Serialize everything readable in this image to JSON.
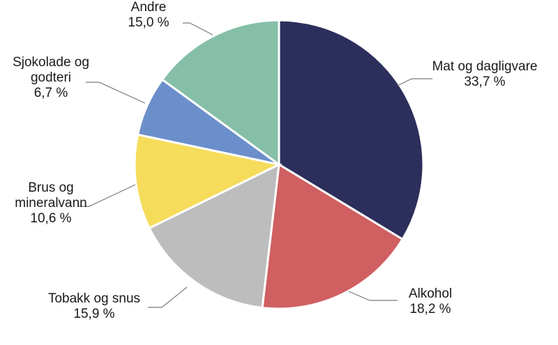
{
  "chart_data": {
    "type": "pie",
    "title": "",
    "unit": "%",
    "slices": [
      {
        "name": "Mat og dagligvare",
        "label_lines": [
          "Mat og dagligvare"
        ],
        "value_label": "33,7 %",
        "value": 33.7,
        "color": "#2c2f5b"
      },
      {
        "name": "Alkohol",
        "label_lines": [
          "Alkohol"
        ],
        "value_label": "18,2 %",
        "value": 18.2,
        "color": "#d05f61"
      },
      {
        "name": "Tobakk og snus",
        "label_lines": [
          "Tobakk og snus"
        ],
        "value_label": "15,9 %",
        "value": 15.9,
        "color": "#bdbdbd"
      },
      {
        "name": "Brus og mineralvann",
        "label_lines": [
          "Brus og",
          "mineralvann"
        ],
        "value_label": "10,6 %",
        "value": 10.6,
        "color": "#f6dc5b"
      },
      {
        "name": "Sjokolade og godteri",
        "label_lines": [
          "Sjokolade og",
          "godteri"
        ],
        "value_label": "6,7 %",
        "value": 6.7,
        "color": "#6b8fcb"
      },
      {
        "name": "Andre",
        "label_lines": [
          "Andre"
        ],
        "value_label": "15,0 %",
        "value": 15.0,
        "color": "#86bfa8"
      }
    ]
  }
}
